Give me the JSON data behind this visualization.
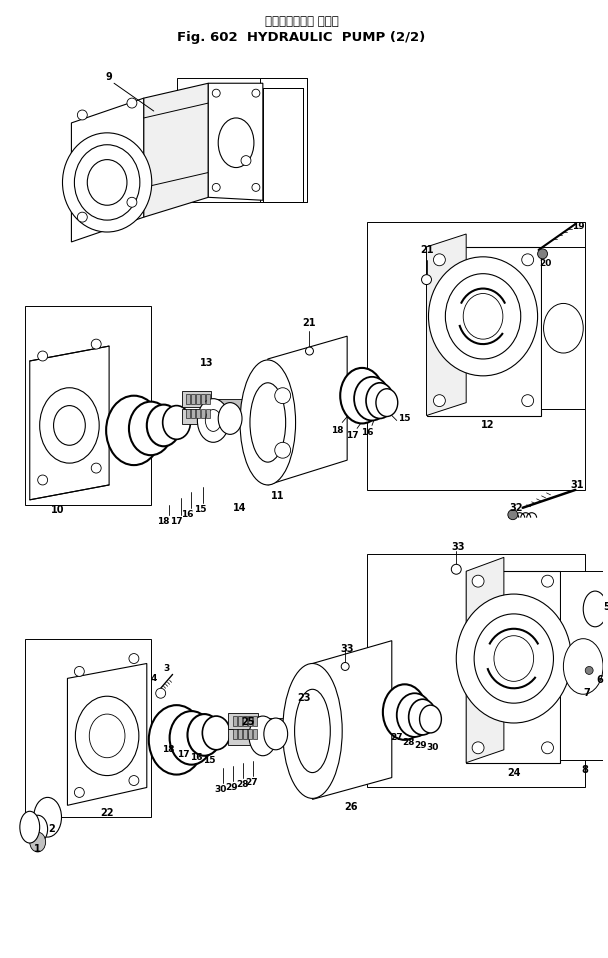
{
  "title_japanese": "ハイドロリック ポンプ",
  "title_english": "Fig. 602  HYDRAULIC  PUMP (2/2)",
  "bg_color": "#ffffff",
  "fg_color": "#000000",
  "fig_width": 6.08,
  "fig_height": 9.58,
  "dpi": 100
}
